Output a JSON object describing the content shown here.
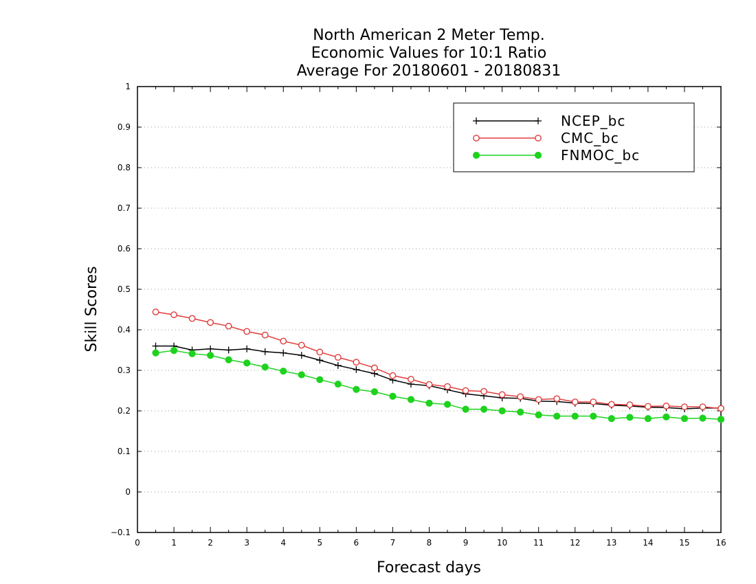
{
  "chart_data": {
    "type": "line",
    "title_lines": [
      "North American 2 Meter Temp.",
      "Economic Values for 10:1 Ratio",
      "Average For 20180601 - 20180831"
    ],
    "xlabel": "Forecast days",
    "ylabel": "Skill Scores",
    "xlim": [
      0,
      16
    ],
    "ylim": [
      -0.1,
      1
    ],
    "xticks": [
      "0",
      "1",
      "2",
      "3",
      "4",
      "5",
      "6",
      "7",
      "8",
      "9",
      "10",
      "11",
      "12",
      "13",
      "14",
      "15",
      "16"
    ],
    "yticks": [
      "−0.1",
      "0",
      "0.1",
      "0.2",
      "0.3",
      "0.4",
      "0.5",
      "0.6",
      "0.7",
      "0.8",
      "0.9",
      "1"
    ],
    "grid": "horizontal dotted",
    "legend_position": "top-right",
    "x": [
      0.5,
      1,
      1.5,
      2,
      2.5,
      3,
      3.5,
      4,
      4.5,
      5,
      5.5,
      6,
      6.5,
      7,
      7.5,
      8,
      8.5,
      9,
      9.5,
      10,
      10.5,
      11,
      11.5,
      12,
      12.5,
      13,
      13.5,
      14,
      14.5,
      15,
      15.5,
      16
    ],
    "series": [
      {
        "name": "NCEP_bc",
        "color": "#000000",
        "marker": "plus",
        "values": [
          0.36,
          0.36,
          0.35,
          0.353,
          0.35,
          0.353,
          0.346,
          0.343,
          0.337,
          0.325,
          0.312,
          0.302,
          0.292,
          0.276,
          0.266,
          0.262,
          0.252,
          0.242,
          0.237,
          0.232,
          0.231,
          0.224,
          0.223,
          0.219,
          0.218,
          0.214,
          0.212,
          0.209,
          0.208,
          0.205,
          0.207,
          0.207
        ]
      },
      {
        "name": "CMC_bc",
        "color": "#e03c3c",
        "marker": "open-circle",
        "values": [
          0.444,
          0.437,
          0.428,
          0.418,
          0.409,
          0.396,
          0.387,
          0.372,
          0.362,
          0.345,
          0.332,
          0.32,
          0.306,
          0.287,
          0.278,
          0.265,
          0.26,
          0.25,
          0.248,
          0.24,
          0.235,
          0.228,
          0.23,
          0.222,
          0.222,
          0.216,
          0.215,
          0.211,
          0.212,
          0.21,
          0.21,
          0.206
        ]
      },
      {
        "name": "FNMOC_bc",
        "color": "#1ed21e",
        "marker": "filled-circle",
        "values": [
          0.343,
          0.349,
          0.341,
          0.337,
          0.326,
          0.318,
          0.308,
          0.298,
          0.289,
          0.277,
          0.266,
          0.253,
          0.247,
          0.236,
          0.228,
          0.219,
          0.216,
          0.204,
          0.204,
          0.2,
          0.197,
          0.19,
          0.187,
          0.187,
          0.187,
          0.181,
          0.184,
          0.181,
          0.185,
          0.181,
          0.182,
          0.179
        ]
      }
    ]
  }
}
